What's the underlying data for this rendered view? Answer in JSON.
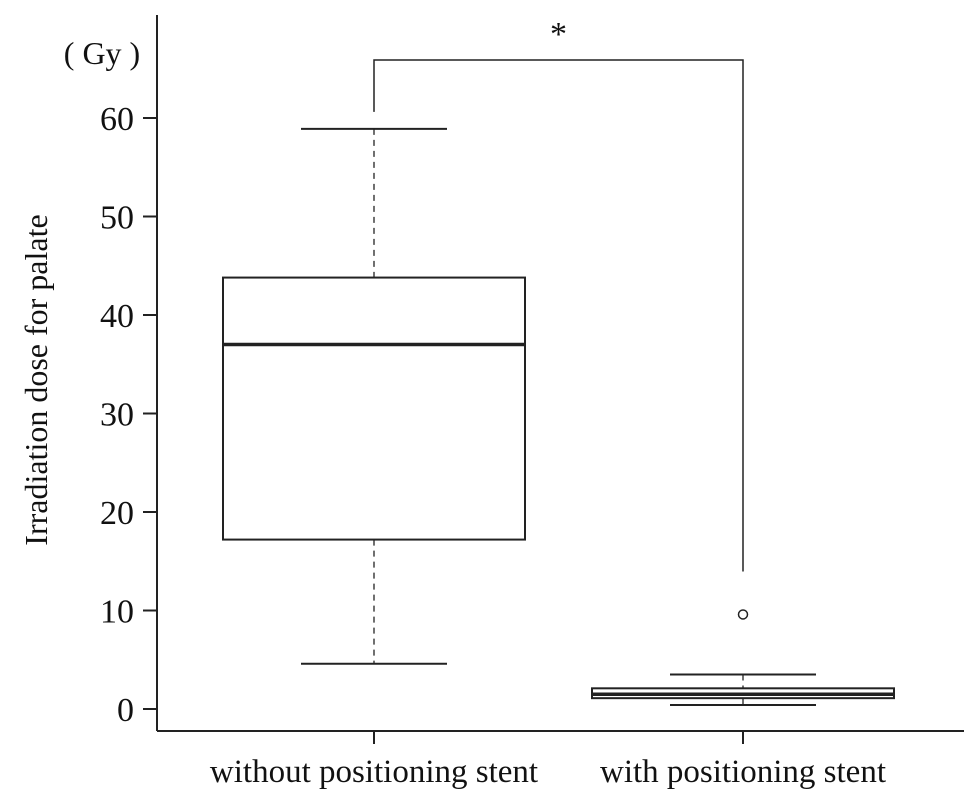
{
  "chart_data": {
    "type": "box",
    "title": "",
    "ylabel": "Irradiation dose for palate",
    "yunit": "( Gy )",
    "ylim": [
      -2,
      71
    ],
    "yticks": [
      0,
      10,
      20,
      30,
      40,
      50,
      60
    ],
    "ytick_labels": [
      "0",
      "10",
      "20",
      "30",
      "40",
      "50",
      "60"
    ],
    "categories": [
      "without positioning stent",
      "with positioning stent"
    ],
    "boxes": [
      {
        "category": "without positioning stent",
        "whisker_low": 4.6,
        "q1": 17.2,
        "median": 37.0,
        "q3": 43.8,
        "whisker_high": 58.9,
        "outliers": []
      },
      {
        "category": "with positioning stent",
        "whisker_low": 0.4,
        "q1": 1.1,
        "median": 1.5,
        "q3": 2.1,
        "whisker_high": 3.5,
        "outliers": [
          9.6
        ]
      }
    ],
    "significance": {
      "label": "*",
      "between": [
        "without positioning stent",
        "with positioning stent"
      ]
    }
  }
}
